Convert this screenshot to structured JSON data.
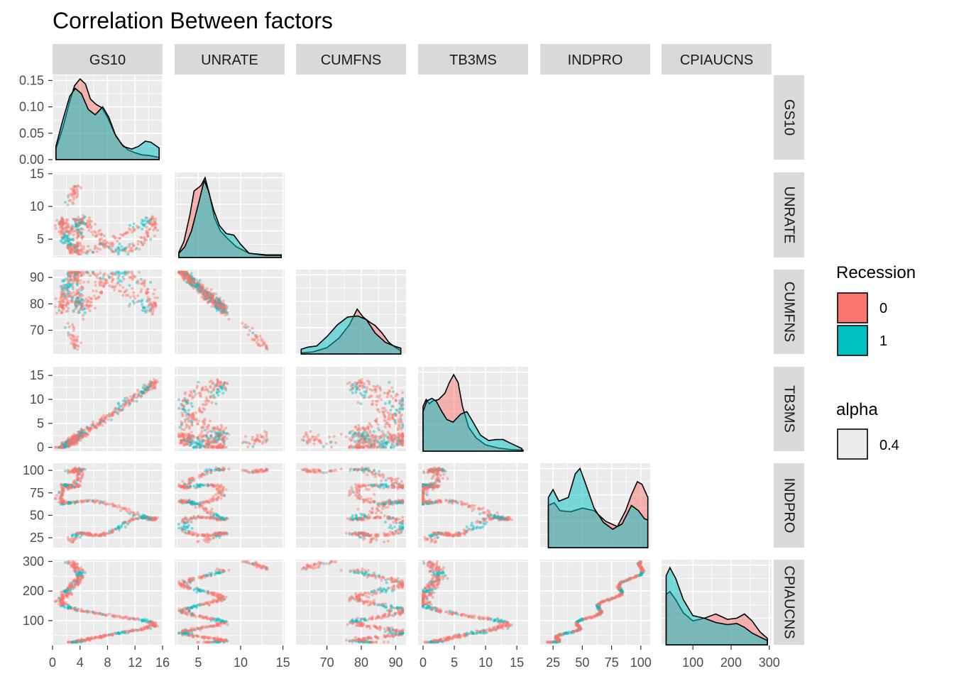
{
  "chart_data": {
    "type": "scatter-matrix",
    "title": "Correlation Between factors",
    "variables": [
      "GS10",
      "UNRATE",
      "CUMFNS",
      "TB3MS",
      "INDPRO",
      "CPIAUCNS"
    ],
    "axes": {
      "GS10": {
        "range": [
          0,
          16
        ],
        "ticks": [
          0,
          4,
          8,
          12,
          16
        ]
      },
      "UNRATE": {
        "range": [
          2.2,
          15.2
        ],
        "ticks": [
          5,
          10,
          15
        ]
      },
      "CUMFNS": {
        "range": [
          61,
          93
        ],
        "ticks": [
          70,
          80,
          90
        ]
      },
      "TB3MS": {
        "range": [
          -0.8,
          16.8
        ],
        "ticks": [
          0,
          5,
          10,
          15
        ]
      },
      "INDPRO": {
        "range": [
          14,
          108
        ],
        "ticks": [
          25,
          50,
          75,
          100
        ]
      },
      "CPIAUCNS": {
        "range": [
          18,
          306
        ],
        "ticks": [
          100,
          200,
          300
        ]
      }
    },
    "diag_y_ticks": [
      "0.00",
      "0.05",
      "0.10",
      "0.15"
    ],
    "diag_y_range": [
      0,
      0.16
    ],
    "density": {
      "GS10": {
        "0": [
          [
            0.5,
            0.02
          ],
          [
            1.5,
            0.06
          ],
          [
            2.5,
            0.11
          ],
          [
            3.2,
            0.14
          ],
          [
            4,
            0.153
          ],
          [
            4.8,
            0.143
          ],
          [
            5.5,
            0.115
          ],
          [
            6.3,
            0.105
          ],
          [
            7.2,
            0.098
          ],
          [
            8,
            0.08
          ],
          [
            9,
            0.05
          ],
          [
            10,
            0.03
          ],
          [
            11,
            0.018
          ],
          [
            12,
            0.013
          ],
          [
            13,
            0.009
          ],
          [
            14,
            0.008
          ],
          [
            15.5,
            0.004
          ]
        ],
        "1": [
          [
            0.5,
            0.025
          ],
          [
            1.5,
            0.075
          ],
          [
            2.5,
            0.12
          ],
          [
            3.3,
            0.135
          ],
          [
            4.2,
            0.125
          ],
          [
            5.2,
            0.095
          ],
          [
            6.2,
            0.085
          ],
          [
            7.3,
            0.1
          ],
          [
            8.2,
            0.08
          ],
          [
            9.2,
            0.045
          ],
          [
            10.3,
            0.025
          ],
          [
            11.5,
            0.02
          ],
          [
            12.5,
            0.025
          ],
          [
            13.5,
            0.035
          ],
          [
            14.3,
            0.033
          ],
          [
            15.5,
            0.022
          ]
        ]
      },
      "UNRATE": {
        "0": [
          [
            2.7,
            0.01
          ],
          [
            3.3,
            0.03
          ],
          [
            4,
            0.08
          ],
          [
            4.5,
            0.125
          ],
          [
            4.9,
            0.13
          ],
          [
            5.3,
            0.135
          ],
          [
            5.8,
            0.15
          ],
          [
            6.3,
            0.12
          ],
          [
            6.9,
            0.075
          ],
          [
            7.6,
            0.05
          ],
          [
            8.5,
            0.035
          ],
          [
            9.5,
            0.02
          ],
          [
            11,
            0.008
          ],
          [
            13,
            0.005
          ],
          [
            14.8,
            0.005
          ]
        ],
        "1": [
          [
            2.7,
            0.008
          ],
          [
            3.4,
            0.02
          ],
          [
            4.2,
            0.05
          ],
          [
            5,
            0.1
          ],
          [
            5.7,
            0.145
          ],
          [
            6.2,
            0.125
          ],
          [
            6.8,
            0.09
          ],
          [
            7.5,
            0.06
          ],
          [
            8.3,
            0.045
          ],
          [
            9.2,
            0.042
          ],
          [
            10,
            0.025
          ],
          [
            11,
            0.008
          ],
          [
            13,
            0.004
          ],
          [
            14.8,
            0.004
          ]
        ]
      },
      "CUMFNS": {
        "0": [
          [
            62.5,
            0.002
          ],
          [
            66,
            0.004
          ],
          [
            70,
            0.012
          ],
          [
            73.5,
            0.03
          ],
          [
            76.5,
            0.055
          ],
          [
            78.8,
            0.085
          ],
          [
            80.5,
            0.07
          ],
          [
            82.5,
            0.06
          ],
          [
            84,
            0.054
          ],
          [
            86,
            0.04
          ],
          [
            88,
            0.022
          ],
          [
            90,
            0.012
          ],
          [
            91.5,
            0.006
          ]
        ],
        "1": [
          [
            62.5,
            0.009
          ],
          [
            64.5,
            0.013
          ],
          [
            67,
            0.015
          ],
          [
            70,
            0.033
          ],
          [
            73,
            0.055
          ],
          [
            76,
            0.07
          ],
          [
            79,
            0.072
          ],
          [
            81.5,
            0.065
          ],
          [
            84,
            0.04
          ],
          [
            87,
            0.022
          ],
          [
            89.5,
            0.015
          ],
          [
            91.5,
            0.011
          ]
        ]
      },
      "TB3MS": {
        "0": [
          [
            0,
            0.085
          ],
          [
            0.5,
            0.098
          ],
          [
            1,
            0.09
          ],
          [
            1.5,
            0.095
          ],
          [
            2.5,
            0.098
          ],
          [
            3.5,
            0.11
          ],
          [
            4.2,
            0.13
          ],
          [
            4.9,
            0.145
          ],
          [
            5.6,
            0.13
          ],
          [
            6.3,
            0.085
          ],
          [
            7.3,
            0.045
          ],
          [
            8.5,
            0.025
          ],
          [
            10,
            0.012
          ],
          [
            12,
            0.006
          ],
          [
            14,
            0.003
          ],
          [
            16,
            0.002
          ]
        ],
        "1": [
          [
            0,
            0.075
          ],
          [
            0.6,
            0.095
          ],
          [
            1.4,
            0.1
          ],
          [
            2.1,
            0.095
          ],
          [
            3,
            0.075
          ],
          [
            3.8,
            0.06
          ],
          [
            4.8,
            0.055
          ],
          [
            6,
            0.07
          ],
          [
            7,
            0.075
          ],
          [
            8,
            0.055
          ],
          [
            9.2,
            0.03
          ],
          [
            10.5,
            0.02
          ],
          [
            11.7,
            0.022
          ],
          [
            12.8,
            0.022
          ],
          [
            14,
            0.015
          ],
          [
            15.8,
            0.005
          ]
        ]
      },
      "INDPRO": {
        "0": [
          [
            21,
            0.08
          ],
          [
            26,
            0.085
          ],
          [
            31,
            0.07
          ],
          [
            40,
            0.068
          ],
          [
            50,
            0.075
          ],
          [
            60,
            0.07
          ],
          [
            70,
            0.05
          ],
          [
            80,
            0.04
          ],
          [
            87,
            0.07
          ],
          [
            92,
            0.1
          ],
          [
            97,
            0.125
          ],
          [
            101,
            0.12
          ],
          [
            106,
            0.095
          ]
        ],
        "1": [
          [
            21,
            0.095
          ],
          [
            25,
            0.11
          ],
          [
            30,
            0.088
          ],
          [
            38,
            0.095
          ],
          [
            44,
            0.14
          ],
          [
            48,
            0.15
          ],
          [
            53,
            0.12
          ],
          [
            60,
            0.075
          ],
          [
            68,
            0.048
          ],
          [
            76,
            0.035
          ],
          [
            84,
            0.045
          ],
          [
            92,
            0.08
          ],
          [
            98,
            0.07
          ],
          [
            103,
            0.055
          ],
          [
            106,
            0.052
          ]
        ]
      },
      "CPIAUCNS": {
        "0": [
          [
            30,
            0.095
          ],
          [
            40,
            0.1
          ],
          [
            55,
            0.085
          ],
          [
            75,
            0.06
          ],
          [
            100,
            0.045
          ],
          [
            130,
            0.05
          ],
          [
            160,
            0.058
          ],
          [
            190,
            0.048
          ],
          [
            215,
            0.05
          ],
          [
            235,
            0.058
          ],
          [
            255,
            0.045
          ],
          [
            275,
            0.025
          ],
          [
            295,
            0.012
          ]
        ],
        "1": [
          [
            30,
            0.13
          ],
          [
            40,
            0.145
          ],
          [
            55,
            0.125
          ],
          [
            75,
            0.085
          ],
          [
            100,
            0.055
          ],
          [
            130,
            0.05
          ],
          [
            160,
            0.042
          ],
          [
            190,
            0.038
          ],
          [
            215,
            0.04
          ],
          [
            235,
            0.033
          ],
          [
            255,
            0.022
          ],
          [
            275,
            0.015
          ],
          [
            295,
            0.008
          ]
        ]
      }
    },
    "legend": [
      {
        "title": "Recession",
        "entries": [
          {
            "label": "0",
            "color": "#F8766D"
          },
          {
            "label": "1",
            "color": "#00BFC4"
          }
        ]
      },
      {
        "title": "alpha",
        "entries": [
          {
            "label": "0.4",
            "color": "#EBEBEB"
          }
        ]
      }
    ],
    "colors": {
      "panel_bg": "#EBEBEB",
      "strip_bg": "#D9D9D9",
      "group0": "#F8766D",
      "group1": "#00BFC4"
    }
  }
}
